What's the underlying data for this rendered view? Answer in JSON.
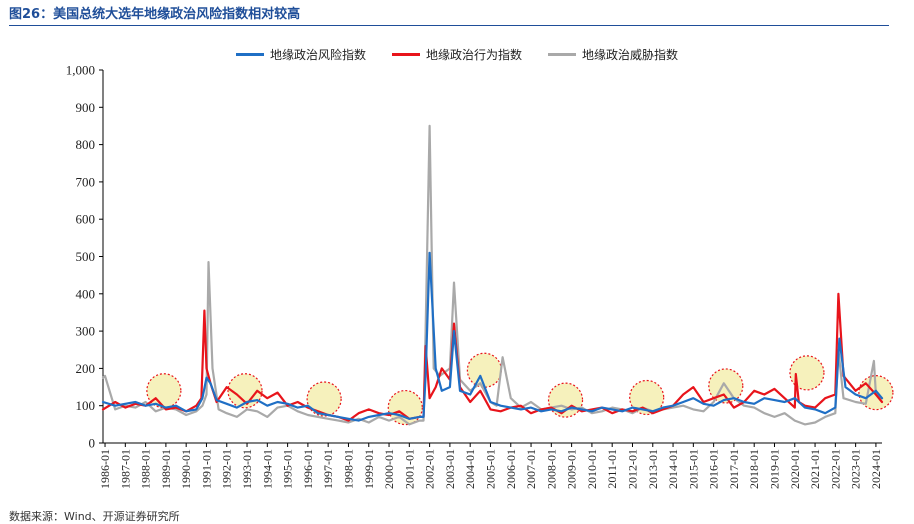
{
  "figure_title": "图26：美国总统大选年地缘政治风险指数相对较高",
  "source_note": "数据来源：Wind、开源证券研究所",
  "chart_data": {
    "type": "line",
    "title": "",
    "xlabel": "",
    "ylabel": "",
    "ylim": [
      0,
      1000
    ],
    "y_ticks": [
      "0",
      "100",
      "200",
      "300",
      "400",
      "500",
      "600",
      "700",
      "800",
      "900",
      "1,000"
    ],
    "x_ticks": [
      "1986-01",
      "1987-01",
      "1988-01",
      "1989-01",
      "1990-01",
      "1991-01",
      "1992-01",
      "1993-01",
      "1994-01",
      "1995-01",
      "1996-01",
      "1997-01",
      "1998-01",
      "1999-01",
      "2000-01",
      "2001-01",
      "2002-01",
      "2003-01",
      "2004-01",
      "2005-01",
      "2006-01",
      "2007-01",
      "2008-01",
      "2009-01",
      "2010-01",
      "2011-01",
      "2012-01",
      "2013-01",
      "2014-01",
      "2015-01",
      "2016-01",
      "2017-01",
      "2018-01",
      "2019-01",
      "2020-01",
      "2021-01",
      "2022-01",
      "2023-01",
      "2024-01"
    ],
    "x_start_year": 1985.9,
    "x_end_year": 2024.3,
    "legend_position": "top-center",
    "grid": false,
    "series": [
      {
        "name": "地缘政治风险指数",
        "color": "#1f6fc5",
        "x": [
          1985.9,
          1986.5,
          1987.0,
          1987.5,
          1988.0,
          1988.5,
          1989.0,
          1989.5,
          1990.0,
          1990.5,
          1990.8,
          1991.0,
          1991.2,
          1991.5,
          1992.0,
          1992.5,
          1993.0,
          1993.5,
          1994.0,
          1994.5,
          1995.0,
          1995.5,
          1996.0,
          1996.5,
          1997.0,
          1997.5,
          1998.0,
          1998.5,
          1999.0,
          1999.5,
          2000.0,
          2000.5,
          2001.0,
          2001.5,
          2001.7,
          2001.8,
          2002.0,
          2002.3,
          2002.6,
          2003.0,
          2003.2,
          2003.5,
          2004.0,
          2004.5,
          2005.0,
          2005.5,
          2006.0,
          2006.5,
          2007.0,
          2007.5,
          2008.0,
          2008.5,
          2009.0,
          2009.5,
          2010.0,
          2010.5,
          2011.0,
          2011.5,
          2012.0,
          2012.5,
          2013.0,
          2013.5,
          2014.0,
          2014.5,
          2015.0,
          2015.5,
          2016.0,
          2016.5,
          2017.0,
          2017.5,
          2018.0,
          2018.5,
          2019.0,
          2019.5,
          2020.0,
          2020.5,
          2021.0,
          2021.5,
          2022.0,
          2022.2,
          2022.5,
          2023.0,
          2023.5,
          2024.0,
          2024.3
        ],
        "values": [
          110,
          100,
          105,
          110,
          100,
          105,
          95,
          100,
          85,
          90,
          120,
          175,
          160,
          115,
          105,
          95,
          110,
          115,
          100,
          110,
          105,
          95,
          100,
          80,
          75,
          70,
          65,
          60,
          70,
          75,
          80,
          75,
          65,
          70,
          70,
          180,
          510,
          200,
          140,
          150,
          300,
          140,
          130,
          180,
          110,
          100,
          95,
          90,
          95,
          85,
          90,
          85,
          95,
          90,
          85,
          95,
          90,
          85,
          95,
          90,
          85,
          95,
          100,
          110,
          120,
          105,
          100,
          115,
          120,
          110,
          105,
          120,
          115,
          110,
          120,
          95,
          90,
          80,
          95,
          280,
          150,
          130,
          120,
          140,
          120
        ]
      },
      {
        "name": "地缘政治行为指数",
        "color": "#e8141b",
        "x": [
          1985.9,
          1986.5,
          1987.0,
          1987.5,
          1988.0,
          1988.5,
          1989.0,
          1989.5,
          1990.0,
          1990.5,
          1990.75,
          1990.9,
          1991.0,
          1991.2,
          1991.5,
          1992.0,
          1992.5,
          1993.0,
          1993.5,
          1994.0,
          1994.5,
          1995.0,
          1995.5,
          1996.0,
          1996.5,
          1997.0,
          1997.5,
          1998.0,
          1998.5,
          1999.0,
          1999.5,
          2000.0,
          2000.5,
          2001.0,
          2001.5,
          2001.7,
          2001.8,
          2002.0,
          2002.3,
          2002.6,
          2003.0,
          2003.2,
          2003.5,
          2004.0,
          2004.5,
          2005.0,
          2005.5,
          2006.0,
          2006.5,
          2007.0,
          2007.5,
          2008.0,
          2008.5,
          2009.0,
          2009.5,
          2010.0,
          2010.5,
          2011.0,
          2011.5,
          2012.0,
          2012.5,
          2013.0,
          2013.5,
          2014.0,
          2014.5,
          2015.0,
          2015.5,
          2016.0,
          2016.5,
          2017.0,
          2017.5,
          2018.0,
          2018.5,
          2019.0,
          2019.5,
          2020.0,
          2020.05,
          2020.2,
          2020.5,
          2021.0,
          2021.5,
          2022.0,
          2022.15,
          2022.4,
          2023.0,
          2023.5,
          2024.0,
          2024.3
        ],
        "values": [
          90,
          110,
          95,
          105,
          100,
          120,
          90,
          95,
          85,
          100,
          120,
          355,
          200,
          160,
          110,
          150,
          130,
          105,
          140,
          120,
          135,
          100,
          110,
          95,
          85,
          75,
          70,
          60,
          80,
          90,
          80,
          75,
          85,
          65,
          70,
          70,
          260,
          120,
          150,
          200,
          170,
          320,
          150,
          110,
          140,
          90,
          85,
          95,
          100,
          80,
          90,
          95,
          80,
          100,
          85,
          90,
          95,
          80,
          90,
          85,
          95,
          80,
          90,
          100,
          130,
          150,
          110,
          120,
          130,
          95,
          110,
          140,
          130,
          145,
          120,
          95,
          185,
          110,
          100,
          95,
          120,
          130,
          400,
          180,
          140,
          160,
          130,
          110
        ]
      },
      {
        "name": "地缘政治威胁指数",
        "color": "#a9a9a9",
        "x": [
          1985.9,
          1986.0,
          1986.5,
          1987.0,
          1987.5,
          1988.0,
          1988.5,
          1989.0,
          1989.5,
          1990.0,
          1990.5,
          1990.8,
          1991.0,
          1991.1,
          1991.3,
          1991.6,
          1992.0,
          1992.5,
          1993.0,
          1993.5,
          1994.0,
          1994.5,
          1995.0,
          1995.5,
          1996.0,
          1996.5,
          1997.0,
          1997.5,
          1998.0,
          1998.5,
          1999.0,
          1999.5,
          2000.0,
          2000.5,
          2001.0,
          2001.5,
          2001.7,
          2001.8,
          2002.0,
          2002.2,
          2002.5,
          2003.0,
          2003.2,
          2003.5,
          2004.0,
          2004.5,
          2005.0,
          2005.3,
          2005.6,
          2006.0,
          2006.5,
          2007.0,
          2007.5,
          2008.0,
          2008.5,
          2009.0,
          2009.5,
          2010.0,
          2010.5,
          2011.0,
          2011.5,
          2012.0,
          2012.5,
          2013.0,
          2013.5,
          2014.0,
          2014.5,
          2015.0,
          2015.5,
          2016.0,
          2016.5,
          2017.0,
          2017.5,
          2018.0,
          2018.5,
          2019.0,
          2019.5,
          2020.0,
          2020.5,
          2021.0,
          2021.5,
          2022.0,
          2022.15,
          2022.4,
          2023.0,
          2023.5,
          2023.9,
          2024.0,
          2024.3
        ],
        "values": [
          175,
          180,
          90,
          100,
          95,
          110,
          85,
          95,
          90,
          75,
          85,
          100,
          130,
          485,
          200,
          90,
          80,
          70,
          90,
          85,
          70,
          95,
          100,
          85,
          75,
          70,
          65,
          60,
          55,
          65,
          55,
          70,
          60,
          70,
          50,
          60,
          60,
          300,
          850,
          200,
          180,
          200,
          430,
          170,
          140,
          160,
          110,
          100,
          230,
          120,
          95,
          110,
          90,
          95,
          100,
          90,
          95,
          80,
          85,
          95,
          90,
          80,
          95,
          85,
          90,
          95,
          100,
          90,
          85,
          110,
          160,
          120,
          100,
          95,
          80,
          70,
          80,
          60,
          50,
          55,
          70,
          80,
          250,
          120,
          110,
          105,
          220,
          130,
          120
        ]
      }
    ],
    "annotations": {
      "type": "highlight-circles",
      "fill": "#f5efb0",
      "stroke": "#e8141b",
      "years": [
        1988.9,
        1992.9,
        1996.8,
        2000.8,
        2004.7,
        2008.7,
        2012.7,
        2016.6,
        2020.6,
        2024.0
      ],
      "centers_value": [
        140,
        140,
        118,
        95,
        195,
        115,
        122,
        153,
        188,
        135
      ]
    }
  }
}
